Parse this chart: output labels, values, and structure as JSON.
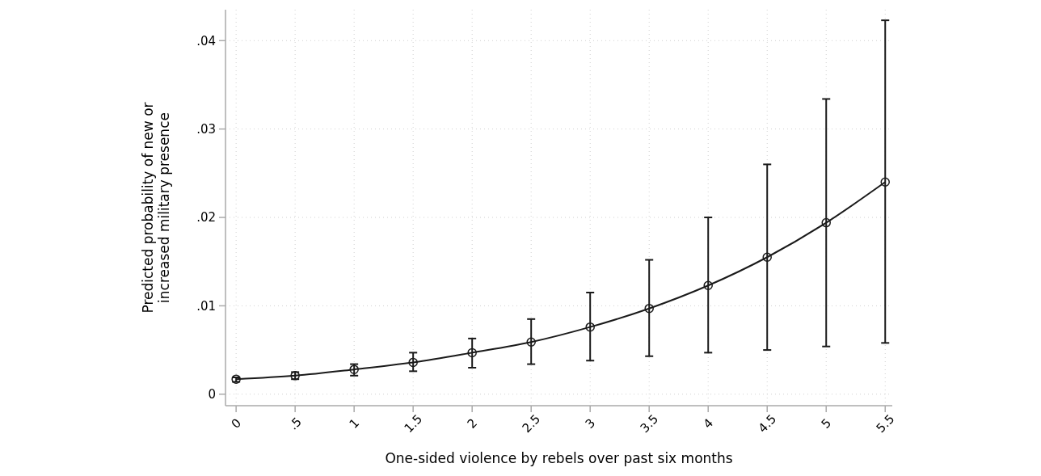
{
  "chart_data": {
    "type": "line",
    "xlabel": "One-sided violence by rebels over past six months",
    "ylabel": "Predicted probability of new or\nincreased military presence",
    "x": [
      0,
      0.5,
      1,
      1.5,
      2,
      2.5,
      3,
      3.5,
      4,
      4.5,
      5,
      5.5
    ],
    "series": [
      {
        "color": "#1a1a1a",
        "values": [
          0.0017,
          0.0021,
          0.0028,
          0.0036,
          0.0047,
          0.0059,
          0.0076,
          0.0097,
          0.0123,
          0.0155,
          0.0194,
          0.024
        ],
        "errors": [
          [
            0.0014,
            0.0019
          ],
          [
            0.0017,
            0.0025
          ],
          [
            0.0021,
            0.0034
          ],
          [
            0.0026,
            0.0047
          ],
          [
            0.003,
            0.0063
          ],
          [
            0.0034,
            0.0085
          ],
          [
            0.0038,
            0.0115
          ],
          [
            0.0043,
            0.0152
          ],
          [
            0.0047,
            0.02
          ],
          [
            0.005,
            0.026
          ],
          [
            0.0054,
            0.0334
          ],
          [
            0.0058,
            0.0423
          ]
        ]
      }
    ],
    "xlim": [
      -0.09,
      5.56
    ],
    "ylim": [
      -0.0013,
      0.0435
    ],
    "xticks": [
      0,
      {
        "value": 0.5,
        "label": ".5"
      },
      1,
      1.5,
      2,
      2.5,
      3,
      3.5,
      4,
      4.5,
      5,
      5.5
    ],
    "yticks": [
      0,
      {
        "value": 0.01,
        "label": ".01"
      },
      {
        "value": 0.02,
        "label": ".02"
      },
      {
        "value": 0.03,
        "label": ".03"
      },
      {
        "value": 0.04,
        "label": ".04"
      }
    ],
    "grid": true,
    "marker": "circle",
    "line_style": "solid"
  }
}
